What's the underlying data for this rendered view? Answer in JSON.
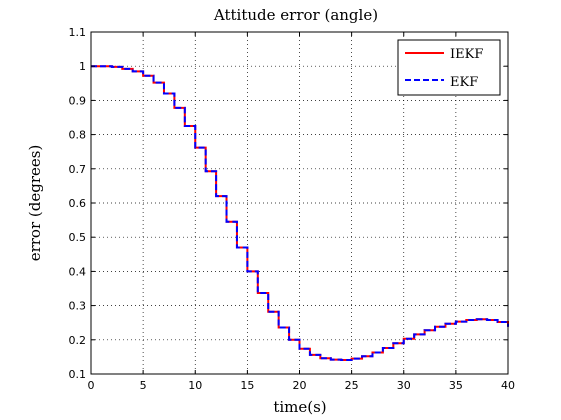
{
  "chart_data": {
    "type": "line",
    "title": "Attitude error (angle)",
    "xlabel": "time(s)",
    "ylabel": "error (degrees)",
    "xlim": [
      0,
      40
    ],
    "ylim": [
      0.1,
      1.1
    ],
    "xticks": [
      "0",
      "5",
      "10",
      "15",
      "20",
      "25",
      "30",
      "35",
      "40"
    ],
    "yticks": [
      "0.1",
      "0.2",
      "0.3",
      "0.4",
      "0.5",
      "0.6",
      "0.7",
      "0.8",
      "0.9",
      "1",
      "1.1"
    ],
    "grid": true,
    "legend_position": "top-right",
    "x": [
      0,
      1,
      2,
      3,
      4,
      5,
      6,
      7,
      8,
      9,
      10,
      11,
      12,
      13,
      14,
      15,
      16,
      17,
      18,
      19,
      20,
      21,
      22,
      23,
      24,
      25,
      26,
      27,
      28,
      29,
      30,
      31,
      32,
      33,
      34,
      35,
      36,
      37,
      38,
      39,
      40
    ],
    "series": [
      {
        "name": "IEKF",
        "color": "#ff0000",
        "dash": "solid",
        "values": [
          1.0,
          1.0,
          0.998,
          0.992,
          0.985,
          0.972,
          0.952,
          0.92,
          0.878,
          0.825,
          0.762,
          0.693,
          0.62,
          0.545,
          0.47,
          0.4,
          0.337,
          0.282,
          0.236,
          0.2,
          0.174,
          0.156,
          0.146,
          0.142,
          0.141,
          0.145,
          0.152,
          0.163,
          0.176,
          0.19,
          0.203,
          0.216,
          0.228,
          0.238,
          0.247,
          0.253,
          0.258,
          0.26,
          0.258,
          0.252,
          0.238
        ]
      },
      {
        "name": "EKF",
        "color": "#0000ff",
        "dash": "dashed",
        "values": [
          1.0,
          1.0,
          0.998,
          0.992,
          0.985,
          0.972,
          0.952,
          0.92,
          0.878,
          0.825,
          0.762,
          0.693,
          0.62,
          0.545,
          0.47,
          0.4,
          0.337,
          0.282,
          0.236,
          0.2,
          0.174,
          0.156,
          0.146,
          0.142,
          0.141,
          0.145,
          0.152,
          0.163,
          0.176,
          0.19,
          0.203,
          0.216,
          0.228,
          0.238,
          0.247,
          0.253,
          0.258,
          0.26,
          0.258,
          0.252,
          0.238
        ]
      }
    ]
  }
}
